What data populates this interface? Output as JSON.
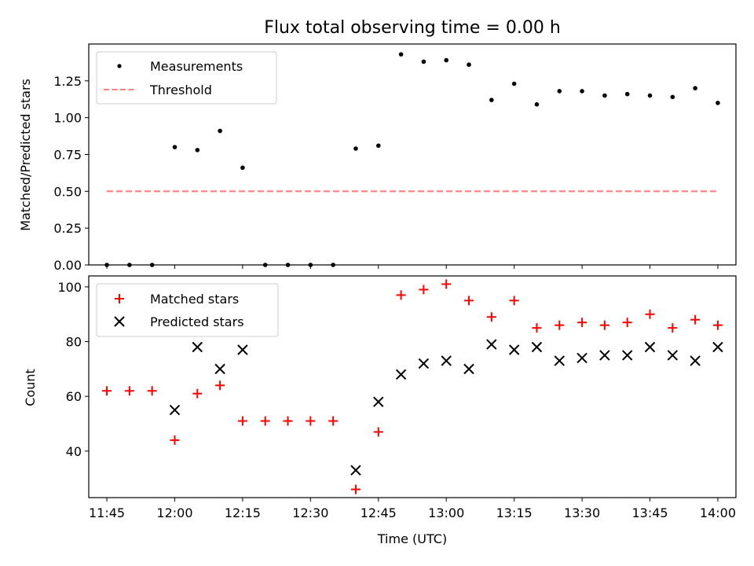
{
  "figure": {
    "title": "Flux total observing time = 0.00 h",
    "xlabel": "Time (UTC)",
    "x_tick_labels": [
      "11:45",
      "12:00",
      "12:15",
      "12:30",
      "12:45",
      "13:00",
      "13:15",
      "13:30",
      "13:45",
      "14:00"
    ]
  },
  "chart_data": [
    {
      "type": "scatter",
      "ylabel": "Matched/Predicted stars",
      "xlim": [
        "11:41",
        "14:04"
      ],
      "ylim": [
        0,
        1.5
      ],
      "y_ticks": [
        "0.00",
        "0.25",
        "0.50",
        "0.75",
        "1.00",
        "1.25"
      ],
      "grid": false,
      "legend": {
        "placement": "top-left",
        "entries": [
          "Measurements",
          "Threshold"
        ]
      },
      "series": [
        {
          "name": "Measurements",
          "marker": "dot",
          "color": "#000000",
          "x": [
            "11:45",
            "11:50",
            "11:55",
            "12:00",
            "12:05",
            "12:10",
            "12:15",
            "12:20",
            "12:25",
            "12:30",
            "12:35",
            "12:40",
            "12:45",
            "12:50",
            "12:55",
            "13:00",
            "13:05",
            "13:10",
            "13:15",
            "13:20",
            "13:25",
            "13:30",
            "13:35",
            "13:40",
            "13:45",
            "13:50",
            "13:55",
            "14:00"
          ],
          "y": [
            0,
            0,
            0,
            0.8,
            0.78,
            0.91,
            0.66,
            0,
            0,
            0,
            0,
            0.79,
            0.81,
            1.43,
            1.38,
            1.39,
            1.36,
            1.12,
            1.23,
            1.09,
            1.18,
            1.18,
            1.15,
            1.16,
            1.15,
            1.14,
            1.2,
            1.1
          ]
        },
        {
          "name": "Threshold",
          "marker": "dashed-line",
          "color": "#ff7f7f",
          "x": [
            "11:45",
            "14:00"
          ],
          "y": [
            0.5,
            0.5
          ]
        }
      ]
    },
    {
      "type": "scatter",
      "ylabel": "Count",
      "xlim": [
        "11:41",
        "14:04"
      ],
      "ylim": [
        23,
        104
      ],
      "y_ticks": [
        "40",
        "60",
        "80",
        "100"
      ],
      "grid": false,
      "legend": {
        "placement": "top-left",
        "entries": [
          "Matched stars",
          "Predicted stars"
        ]
      },
      "series": [
        {
          "name": "Matched stars",
          "marker": "plus",
          "color": "#ff0000",
          "x": [
            "11:45",
            "11:50",
            "11:55",
            "12:00",
            "12:05",
            "12:10",
            "12:15",
            "12:20",
            "12:25",
            "12:30",
            "12:35",
            "12:40",
            "12:45",
            "12:50",
            "12:55",
            "13:00",
            "13:05",
            "13:10",
            "13:15",
            "13:20",
            "13:25",
            "13:30",
            "13:35",
            "13:40",
            "13:45",
            "13:50",
            "13:55",
            "14:00"
          ],
          "y": [
            62,
            62,
            62,
            44,
            61,
            64,
            51,
            51,
            51,
            51,
            51,
            26,
            47,
            97,
            99,
            101,
            95,
            89,
            95,
            85,
            86,
            87,
            86,
            87,
            90,
            85,
            88,
            86
          ]
        },
        {
          "name": "Predicted stars",
          "marker": "x",
          "color": "#000000",
          "x": [
            "12:00",
            "12:05",
            "12:10",
            "12:15",
            "12:40",
            "12:45",
            "12:50",
            "12:55",
            "13:00",
            "13:05",
            "13:10",
            "13:15",
            "13:20",
            "13:25",
            "13:30",
            "13:35",
            "13:40",
            "13:45",
            "13:50",
            "13:55",
            "14:00"
          ],
          "y": [
            55,
            78,
            70,
            77,
            33,
            58,
            68,
            72,
            73,
            70,
            79,
            77,
            78,
            73,
            74,
            75,
            75,
            78,
            75,
            73,
            78
          ]
        }
      ]
    }
  ]
}
